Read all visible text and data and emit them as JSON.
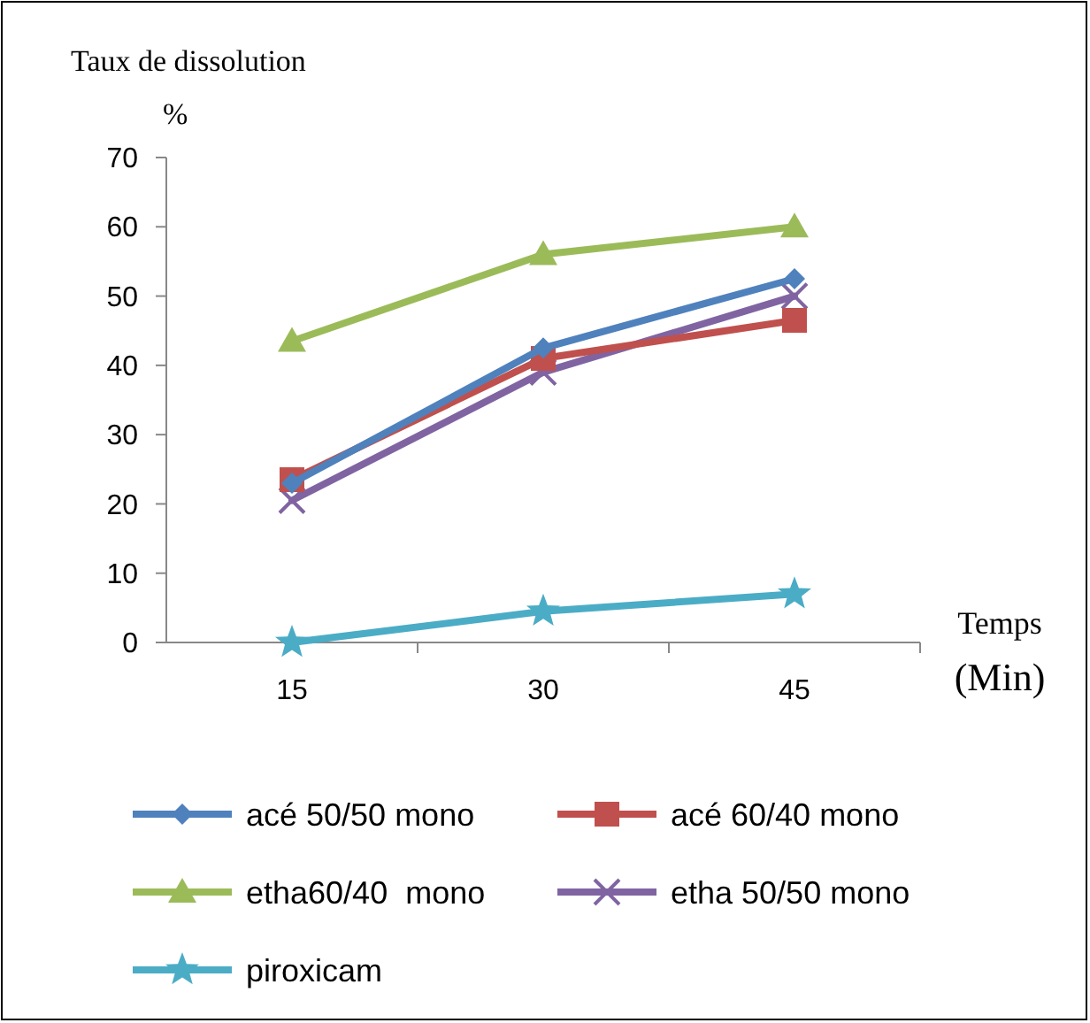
{
  "chart_data": {
    "type": "line",
    "ylabel": "Taux de dissolution\n%",
    "xlabel": "Temps\n(Min)",
    "categories": [
      "15",
      "30",
      "45"
    ],
    "ylim": [
      0,
      70
    ],
    "yticks": [
      0,
      10,
      20,
      30,
      40,
      50,
      60,
      70
    ],
    "grid": false,
    "legend": "bottom",
    "series": [
      {
        "name": "acé 50/50 mono",
        "color": "#4f81bd",
        "marker": "diamond",
        "values": [
          23,
          42.5,
          52.5
        ]
      },
      {
        "name": "acé 60/40 mono",
        "color": "#c0504d",
        "marker": "square",
        "values": [
          23.5,
          41,
          46.5
        ]
      },
      {
        "name": "etha60/40  mono",
        "color": "#9bbb59",
        "marker": "triangle",
        "values": [
          43.5,
          56,
          60
        ]
      },
      {
        "name": "etha 50/50 mono",
        "color": "#8064a2",
        "marker": "cross",
        "values": [
          20.5,
          39,
          50
        ]
      },
      {
        "name": "piroxicam",
        "color": "#4bacc6",
        "marker": "star",
        "values": [
          0,
          4.5,
          7
        ]
      }
    ]
  }
}
